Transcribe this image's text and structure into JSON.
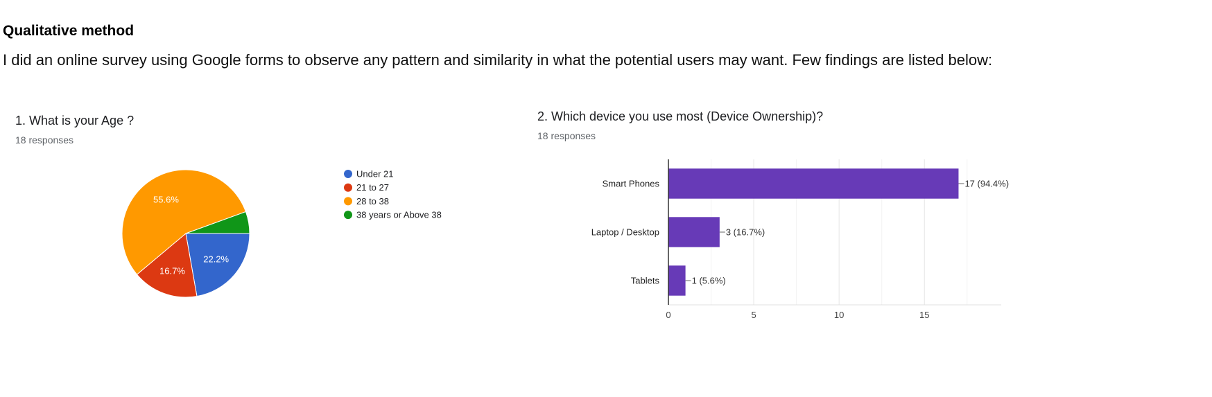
{
  "page": {
    "heading": "Qualitative method",
    "intro": "I did an online survey using Google forms to observe any pattern and similarity in what the potential users may want. Few findings are listed below:"
  },
  "chart_data": [
    {
      "type": "pie",
      "title": "1. What is your Age ?",
      "subtitle": "18 responses",
      "categories": [
        "Under 21",
        "21 to 27",
        "28 to 38",
        "38 years or Above 38"
      ],
      "values": [
        4,
        3,
        10,
        1
      ],
      "slice_labels": [
        "22.2%",
        "16.7%",
        "55.6%",
        ""
      ],
      "colors": [
        "#3366cc",
        "#dc3912",
        "#ff9900",
        "#109618"
      ],
      "legend_position": "right"
    },
    {
      "type": "bar",
      "orientation": "horizontal",
      "title": "2. Which device you use most (Device Ownership)?",
      "subtitle": "18 responses",
      "categories": [
        "Smart Phones",
        "Laptop / Desktop",
        "Tablets"
      ],
      "values": [
        17,
        3,
        1
      ],
      "data_labels": [
        "17 (94.4%)",
        "3 (16.7%)",
        "1 (5.6%)"
      ],
      "xlim": [
        0,
        19.5
      ],
      "xticks": [
        0,
        5,
        10,
        15
      ],
      "color": "#673ab7",
      "grid": true
    }
  ]
}
